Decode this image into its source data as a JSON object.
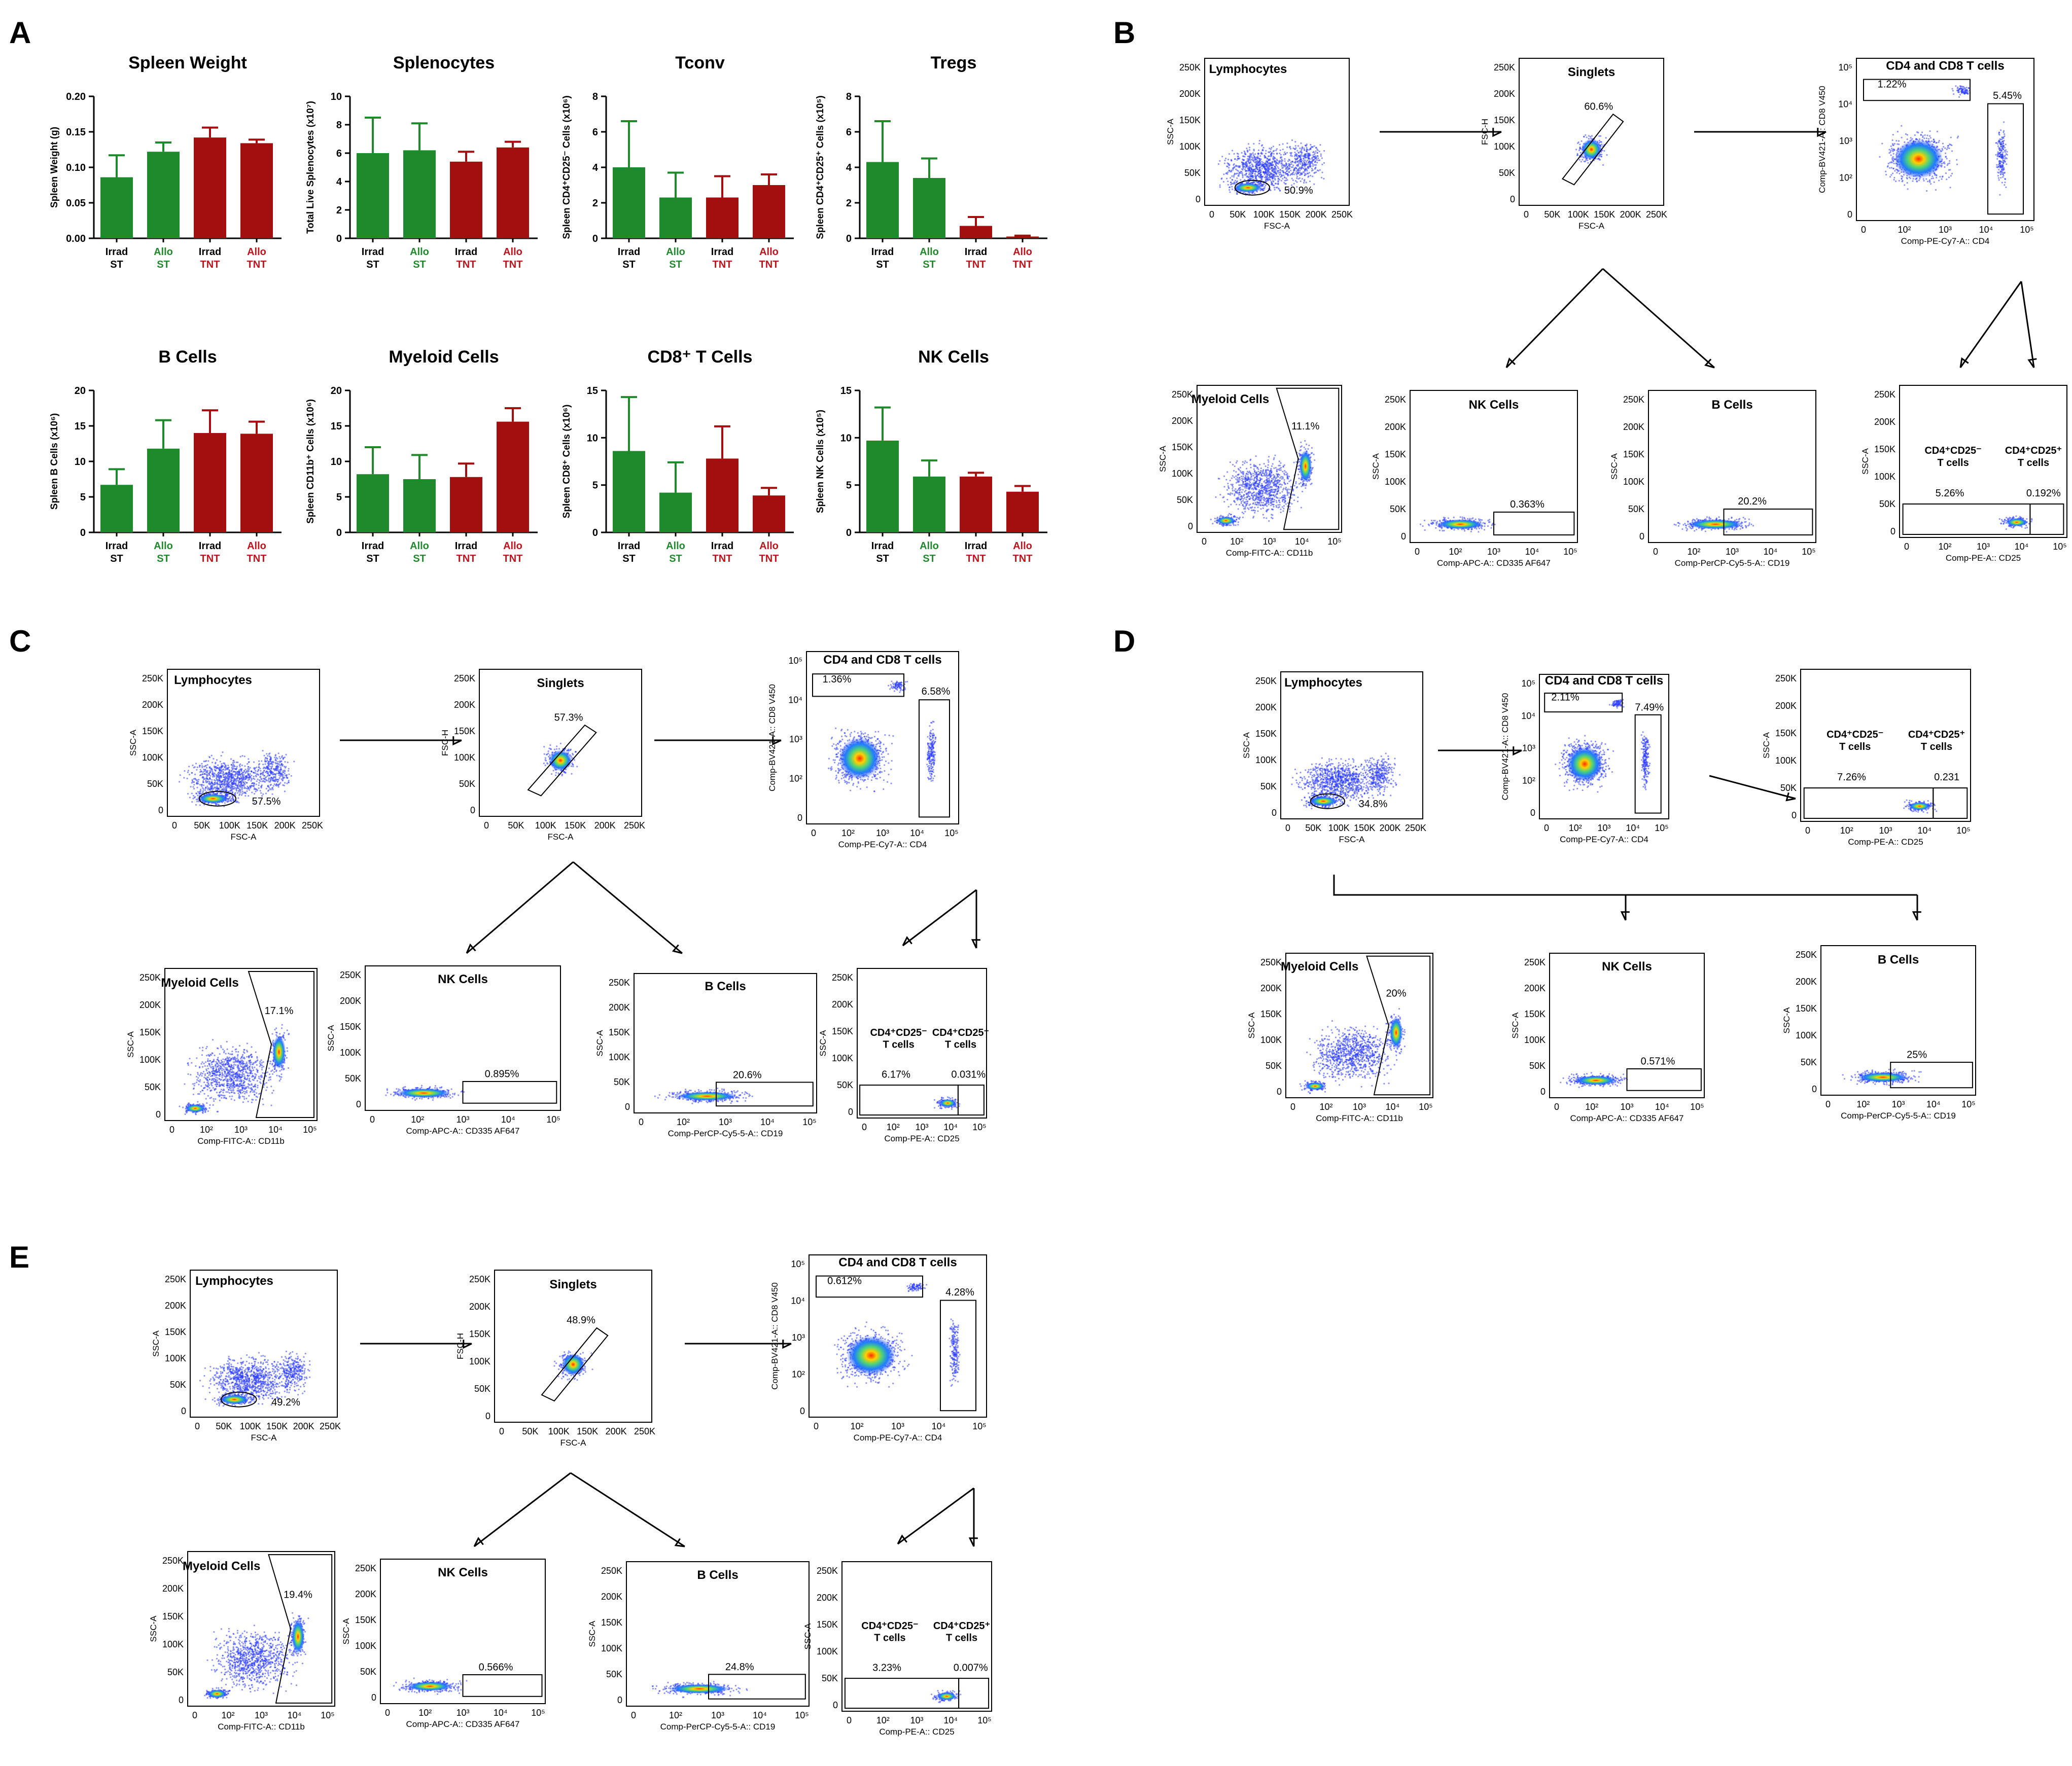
{
  "panel_letters": [
    "A",
    "B",
    "C",
    "D",
    "E"
  ],
  "colors": {
    "st": "#1f8a2b",
    "tnt": "#a30f0f",
    "axis": "#000000",
    "label_green": "#1f8a2b",
    "label_red": "#c0131b"
  },
  "group_labels": [
    {
      "line1": "Irrad",
      "line2": "ST",
      "color": "black"
    },
    {
      "line1": "Allo",
      "line2": "ST",
      "color": "green"
    },
    {
      "line1": "Irrad",
      "line2": "TNT",
      "color": "black_red"
    },
    {
      "line1": "Allo",
      "line2": "TNT",
      "color": "red"
    }
  ],
  "chart_data": [
    {
      "type": "bar",
      "title": "Spleen Weight",
      "ylabel": "Spleen Weight (g)",
      "ylim": [
        0,
        0.2
      ],
      "yticks": [
        "0.00",
        "0.05",
        "0.10",
        "0.15",
        "0.20"
      ],
      "categories": [
        "Irrad ST",
        "Allo ST",
        "Irrad TNT",
        "Allo TNT"
      ],
      "values": [
        0.086,
        0.122,
        0.142,
        0.134
      ],
      "errors": [
        0.031,
        0.013,
        0.014,
        0.005
      ]
    },
    {
      "type": "bar",
      "title": "Splenocytes",
      "ylabel": "Total Live Splenocytes (x10⁷)",
      "ylim": [
        0,
        10
      ],
      "yticks": [
        "0",
        "2",
        "4",
        "6",
        "8",
        "10"
      ],
      "categories": [
        "Irrad ST",
        "Allo ST",
        "Irrad TNT",
        "Allo TNT"
      ],
      "values": [
        6.0,
        6.2,
        5.4,
        6.4
      ],
      "errors": [
        2.5,
        1.9,
        0.7,
        0.4
      ]
    },
    {
      "type": "bar",
      "title": "Tconv",
      "ylabel": "Spleen CD4⁺CD25⁻ Cells (x10⁶)",
      "ylim": [
        0,
        8
      ],
      "yticks": [
        "0",
        "2",
        "4",
        "6",
        "8"
      ],
      "categories": [
        "Irrad ST",
        "Allo ST",
        "Irrad TNT",
        "Allo TNT"
      ],
      "values": [
        4.0,
        2.3,
        2.3,
        3.0
      ],
      "errors": [
        2.6,
        1.4,
        1.2,
        0.6
      ]
    },
    {
      "type": "bar",
      "title": "Tregs",
      "ylabel": "Spleen CD4⁺CD25⁺ Cells (x10⁵)",
      "ylim": [
        0,
        8
      ],
      "yticks": [
        "0",
        "2",
        "4",
        "6",
        "8"
      ],
      "categories": [
        "Irrad ST",
        "Allo ST",
        "Irrad TNT",
        "Allo TNT"
      ],
      "values": [
        4.3,
        3.4,
        0.7,
        0.1
      ],
      "errors": [
        2.3,
        1.1,
        0.5,
        0.05
      ]
    },
    {
      "type": "bar",
      "title": "B Cells",
      "ylabel": "Spleen B Cells (x10⁶)",
      "ylim": [
        0,
        20
      ],
      "yticks": [
        "0",
        "5",
        "10",
        "15",
        "20"
      ],
      "categories": [
        "Irrad ST",
        "Allo ST",
        "Irrad TNT",
        "Allo TNT"
      ],
      "values": [
        6.7,
        11.8,
        14.0,
        13.9
      ],
      "errors": [
        2.2,
        4.0,
        3.2,
        1.7
      ]
    },
    {
      "type": "bar",
      "title": "Myeloid Cells",
      "ylabel": "Spleen CD11b⁺ Cells (x10⁶)",
      "ylim": [
        0,
        20
      ],
      "yticks": [
        "0",
        "5",
        "10",
        "15",
        "20"
      ],
      "categories": [
        "Irrad ST",
        "Allo ST",
        "Irrad TNT",
        "Allo TNT"
      ],
      "values": [
        8.2,
        7.5,
        7.8,
        15.6
      ],
      "errors": [
        3.8,
        3.4,
        1.9,
        1.9
      ]
    },
    {
      "type": "bar",
      "title": "CD8⁺ T Cells",
      "ylabel": "Spleen CD8⁺ Cells (x10⁶)",
      "ylim": [
        0,
        15
      ],
      "yticks": [
        "0",
        "5",
        "10",
        "15"
      ],
      "categories": [
        "Irrad ST",
        "Allo ST",
        "Irrad TNT",
        "Allo TNT"
      ],
      "values": [
        8.6,
        4.2,
        7.8,
        3.9
      ],
      "errors": [
        5.7,
        3.2,
        3.4,
        0.8
      ]
    },
    {
      "type": "bar",
      "title": "NK Cells",
      "ylabel": "Spleen NK Cells (x10⁵)",
      "ylim": [
        0,
        15
      ],
      "yticks": [
        "0",
        "5",
        "10",
        "15"
      ],
      "categories": [
        "Irrad ST",
        "Allo ST",
        "Irrad TNT",
        "Allo TNT"
      ],
      "values": [
        9.7,
        5.9,
        5.9,
        4.3
      ],
      "errors": [
        3.5,
        1.7,
        0.4,
        0.6
      ]
    }
  ],
  "flow": {
    "tick_lin": [
      "0",
      "50K",
      "100K",
      "150K",
      "200K",
      "250K"
    ],
    "tick_log": [
      "0",
      "10²",
      "10³",
      "10⁴",
      "10⁵"
    ],
    "axis_titles": {
      "ssc": "SSC-A",
      "fsc_a": "FSC-A",
      "fsc_h": "FSC-H",
      "cd4": "Comp-PE-Cy7-A:: CD4",
      "cd8": "Comp-BV421-A:: CD8 V450",
      "cd11b": "Comp-FITC-A:: CD11b",
      "nk": "Comp-APC-A:: CD335 AF647",
      "cd19": "Comp-PerCP-Cy5-5-A:: CD19",
      "cd25": "Comp-PE-A:: CD25"
    },
    "gate_names": {
      "lymph": "Lymphocytes",
      "singlets": "Singlets",
      "cd4cd8": "CD4 and CD8 T cells",
      "myeloid": "Myeloid Cells",
      "nk": "NK Cells",
      "b": "B Cells",
      "tconv": "CD4⁺CD25⁻",
      "treg": "CD4⁺CD25⁺",
      "tcells": "T cells"
    },
    "B": {
      "lymph": "50.9%",
      "singlets": "60.6%",
      "cd8": "1.22%",
      "cd4": "5.45%",
      "myeloid": "11.1%",
      "nk": "0.363%",
      "b": "20.2%",
      "tconv": "5.26%",
      "treg": "0.192%"
    },
    "C": {
      "lymph": "57.5%",
      "singlets": "57.3%",
      "cd8": "1.36%",
      "cd4": "6.58%",
      "myeloid": "17.1%",
      "nk": "0.895%",
      "b": "20.6%",
      "tconv": "6.17%",
      "treg": "0.031%"
    },
    "D": {
      "lymph": "34.8%",
      "cd8": "2.11%",
      "cd4": "7.49%",
      "tconv": "7.26%",
      "treg": "0.231",
      "myeloid": "20%",
      "nk": "0.571%",
      "b": "25%"
    },
    "E": {
      "lymph": "49.2%",
      "singlets": "48.9%",
      "cd8": "0.612%",
      "cd4": "4.28%",
      "myeloid": "19.4%",
      "nk": "0.566%",
      "b": "24.8%",
      "tconv": "3.23%",
      "treg": "0.007%"
    }
  }
}
